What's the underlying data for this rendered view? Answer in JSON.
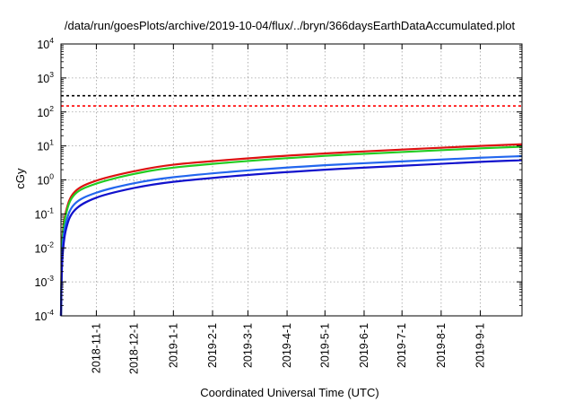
{
  "chart_data": {
    "type": "line",
    "title": "/data/run/goesPlots/archive/2019-10-04/flux/../bryn/366daysEarthDataAccumulated.plot",
    "xlabel": "Coordinated Universal Time (UTC)",
    "ylabel": "cGy",
    "y_scale": "log",
    "ylim": [
      0.0001,
      10000
    ],
    "xlim": [
      "2018-10-04",
      "2019-10-04"
    ],
    "grid": true,
    "grid_style": "dotted",
    "legend": "none",
    "x_ticks": [
      {
        "date": "2018-11-01",
        "label": "2018-11-1"
      },
      {
        "date": "2018-12-01",
        "label": "2018-12-1"
      },
      {
        "date": "2019-01-01",
        "label": "2019-1-1"
      },
      {
        "date": "2019-02-01",
        "label": "2019-2-1"
      },
      {
        "date": "2019-03-01",
        "label": "2019-3-1"
      },
      {
        "date": "2019-04-01",
        "label": "2019-4-1"
      },
      {
        "date": "2019-05-01",
        "label": "2019-5-1"
      },
      {
        "date": "2019-06-01",
        "label": "2019-6-1"
      },
      {
        "date": "2019-07-01",
        "label": "2019-7-1"
      },
      {
        "date": "2019-08-01",
        "label": "2019-8-1"
      },
      {
        "date": "2019-09-01",
        "label": "2019-9-1"
      }
    ],
    "y_ticks": [
      {
        "value": 0.0001,
        "base": "10",
        "exp": "-4"
      },
      {
        "value": 0.001,
        "base": "10",
        "exp": "-3"
      },
      {
        "value": 0.01,
        "base": "10",
        "exp": "-2"
      },
      {
        "value": 0.1,
        "base": "10",
        "exp": "-1"
      },
      {
        "value": 1,
        "base": "10",
        "exp": "0"
      },
      {
        "value": 10,
        "base": "10",
        "exp": "1"
      },
      {
        "value": 100,
        "base": "10",
        "exp": "2"
      },
      {
        "value": 1000,
        "base": "10",
        "exp": "3"
      },
      {
        "value": 10000,
        "base": "10",
        "exp": "4"
      }
    ],
    "reference_lines": [
      {
        "value": 300,
        "color": "#000000",
        "style": "dashed"
      },
      {
        "value": 150,
        "color": "#ff0000",
        "style": "dashed"
      }
    ],
    "series": [
      {
        "color": "#dd1111",
        "x": [
          "2018-10-04",
          "2018-10-05",
          "2018-10-08",
          "2018-10-15",
          "2018-11-01",
          "2018-12-01",
          "2019-01-01",
          "2019-03-01",
          "2019-05-01",
          "2019-07-01",
          "2019-09-01",
          "2019-10-04"
        ],
        "y": [
          0.0001,
          0.015,
          0.12,
          0.45,
          0.95,
          1.8,
          2.8,
          4.3,
          6.0,
          7.8,
          10.0,
          11.2
        ]
      },
      {
        "color": "#22cc22",
        "x": [
          "2018-10-04",
          "2018-10-05",
          "2018-10-08",
          "2018-10-15",
          "2018-11-01",
          "2018-12-01",
          "2019-01-01",
          "2019-03-01",
          "2019-05-01",
          "2019-07-01",
          "2019-09-01",
          "2019-10-04"
        ],
        "y": [
          0.0001,
          0.012,
          0.1,
          0.38,
          0.78,
          1.5,
          2.3,
          3.6,
          5.1,
          6.6,
          8.5,
          9.5
        ]
      },
      {
        "color": "#2266ee",
        "x": [
          "2018-10-04",
          "2018-10-05",
          "2018-10-08",
          "2018-10-15",
          "2018-11-01",
          "2018-12-01",
          "2019-01-01",
          "2019-03-01",
          "2019-05-01",
          "2019-07-01",
          "2019-09-01",
          "2019-10-04"
        ],
        "y": [
          0.0001,
          0.007,
          0.055,
          0.2,
          0.42,
          0.8,
          1.2,
          1.9,
          2.7,
          3.5,
          4.5,
          5.0
        ]
      },
      {
        "color": "#1111cc",
        "x": [
          "2018-10-04",
          "2018-10-05",
          "2018-10-08",
          "2018-10-15",
          "2018-11-01",
          "2018-12-01",
          "2019-01-01",
          "2019-03-01",
          "2019-05-01",
          "2019-07-01",
          "2019-09-01",
          "2019-10-04"
        ],
        "y": [
          0.0001,
          0.004,
          0.035,
          0.13,
          0.3,
          0.58,
          0.88,
          1.4,
          2.0,
          2.6,
          3.4,
          3.8
        ]
      }
    ]
  }
}
